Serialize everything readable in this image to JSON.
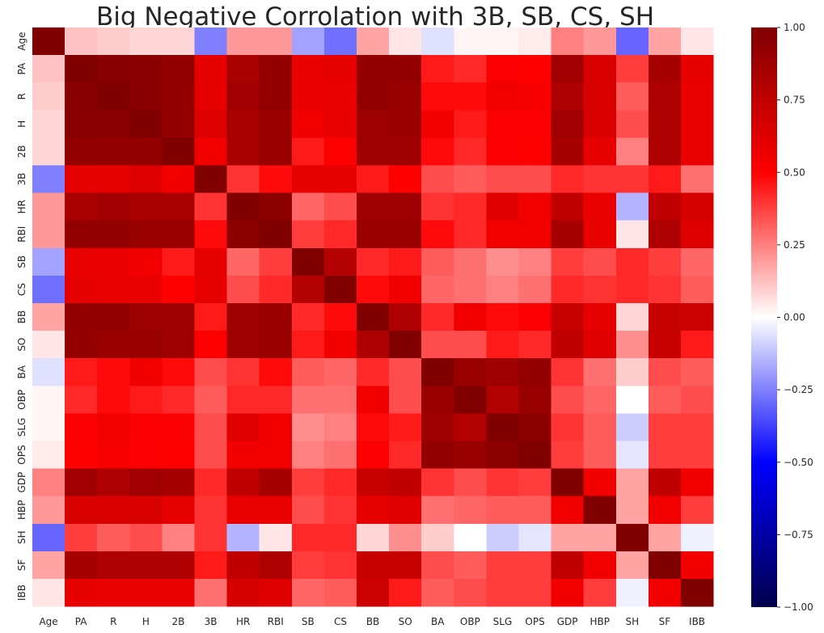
{
  "chart_data": {
    "type": "heatmap",
    "title": "Big Negative Corrolation with 3B, SB, CS, SH",
    "xlabel": "",
    "ylabel": "",
    "x_labels": [
      "Age",
      "PA",
      "R",
      "H",
      "2B",
      "3B",
      "HR",
      "RBI",
      "SB",
      "CS",
      "BB",
      "SO",
      "BA",
      "OBP",
      "SLG",
      "OPS",
      "GDP",
      "HBP",
      "SH",
      "SF",
      "IBB"
    ],
    "y_labels": [
      "Age",
      "PA",
      "R",
      "H",
      "2B",
      "3B",
      "HR",
      "RBI",
      "SB",
      "CS",
      "BB",
      "SO",
      "BA",
      "OBP",
      "SLG",
      "OPS",
      "GDP",
      "HBP",
      "SH",
      "SF",
      "IBB"
    ],
    "values": [
      [
        1.0,
        0.12,
        0.1,
        0.08,
        0.08,
        -0.25,
        0.2,
        0.2,
        -0.18,
        -0.28,
        0.18,
        0.05,
        -0.06,
        0.02,
        0.02,
        0.04,
        0.25,
        0.2,
        -0.3,
        0.18,
        0.05
      ],
      [
        0.12,
        1.0,
        0.97,
        0.96,
        0.93,
        0.6,
        0.84,
        0.92,
        0.58,
        0.6,
        0.92,
        0.92,
        0.45,
        0.42,
        0.52,
        0.5,
        0.87,
        0.65,
        0.38,
        0.85,
        0.6
      ],
      [
        0.1,
        0.97,
        1.0,
        0.96,
        0.92,
        0.6,
        0.87,
        0.92,
        0.57,
        0.58,
        0.93,
        0.9,
        0.48,
        0.48,
        0.55,
        0.53,
        0.82,
        0.65,
        0.32,
        0.82,
        0.58
      ],
      [
        0.08,
        0.96,
        0.96,
        1.0,
        0.92,
        0.63,
        0.84,
        0.9,
        0.55,
        0.58,
        0.89,
        0.9,
        0.55,
        0.45,
        0.52,
        0.52,
        0.87,
        0.65,
        0.35,
        0.82,
        0.58
      ],
      [
        0.08,
        0.93,
        0.92,
        0.92,
        1.0,
        0.55,
        0.84,
        0.9,
        0.45,
        0.5,
        0.88,
        0.88,
        0.48,
        0.42,
        0.52,
        0.5,
        0.85,
        0.6,
        0.25,
        0.82,
        0.58
      ],
      [
        -0.25,
        0.6,
        0.6,
        0.63,
        0.55,
        1.0,
        0.4,
        0.48,
        0.6,
        0.6,
        0.45,
        0.5,
        0.35,
        0.32,
        0.35,
        0.35,
        0.42,
        0.4,
        0.4,
        0.45,
        0.28
      ],
      [
        0.2,
        0.84,
        0.87,
        0.84,
        0.84,
        0.4,
        1.0,
        0.95,
        0.3,
        0.35,
        0.88,
        0.88,
        0.4,
        0.42,
        0.62,
        0.55,
        0.75,
        0.58,
        -0.15,
        0.75,
        0.66
      ],
      [
        0.2,
        0.92,
        0.92,
        0.9,
        0.9,
        0.48,
        0.95,
        1.0,
        0.38,
        0.42,
        0.9,
        0.9,
        0.48,
        0.42,
        0.55,
        0.55,
        0.85,
        0.58,
        0.05,
        0.82,
        0.63
      ],
      [
        -0.18,
        0.58,
        0.57,
        0.55,
        0.45,
        0.6,
        0.3,
        0.38,
        1.0,
        0.8,
        0.42,
        0.45,
        0.32,
        0.28,
        0.22,
        0.25,
        0.38,
        0.35,
        0.42,
        0.38,
        0.3
      ],
      [
        -0.28,
        0.6,
        0.58,
        0.58,
        0.5,
        0.6,
        0.35,
        0.42,
        0.8,
        1.0,
        0.48,
        0.55,
        0.3,
        0.28,
        0.25,
        0.28,
        0.42,
        0.4,
        0.42,
        0.4,
        0.32
      ],
      [
        0.18,
        0.92,
        0.93,
        0.89,
        0.88,
        0.45,
        0.88,
        0.9,
        0.42,
        0.48,
        1.0,
        0.82,
        0.42,
        0.55,
        0.48,
        0.52,
        0.72,
        0.6,
        0.08,
        0.72,
        0.7
      ],
      [
        0.05,
        0.92,
        0.9,
        0.9,
        0.88,
        0.5,
        0.88,
        0.9,
        0.45,
        0.55,
        0.82,
        1.0,
        0.35,
        0.35,
        0.45,
        0.42,
        0.75,
        0.62,
        0.22,
        0.72,
        0.45
      ],
      [
        -0.06,
        0.45,
        0.48,
        0.55,
        0.48,
        0.35,
        0.4,
        0.48,
        0.32,
        0.3,
        0.42,
        0.35,
        1.0,
        0.9,
        0.88,
        0.92,
        0.4,
        0.28,
        0.1,
        0.35,
        0.32
      ],
      [
        0.02,
        0.42,
        0.48,
        0.45,
        0.42,
        0.32,
        0.42,
        0.42,
        0.28,
        0.28,
        0.55,
        0.35,
        0.9,
        1.0,
        0.8,
        0.9,
        0.35,
        0.3,
        0.0,
        0.32,
        0.35
      ],
      [
        0.02,
        0.52,
        0.55,
        0.52,
        0.52,
        0.35,
        0.62,
        0.55,
        0.22,
        0.25,
        0.48,
        0.45,
        0.88,
        0.8,
        1.0,
        0.95,
        0.4,
        0.32,
        -0.1,
        0.38,
        0.38
      ],
      [
        0.04,
        0.5,
        0.53,
        0.52,
        0.5,
        0.35,
        0.55,
        0.55,
        0.25,
        0.28,
        0.52,
        0.42,
        0.92,
        0.9,
        0.95,
        1.0,
        0.38,
        0.32,
        -0.05,
        0.38,
        0.38
      ],
      [
        0.25,
        0.87,
        0.82,
        0.87,
        0.85,
        0.42,
        0.75,
        0.85,
        0.38,
        0.42,
        0.72,
        0.75,
        0.4,
        0.35,
        0.4,
        0.38,
        1.0,
        0.55,
        0.18,
        0.75,
        0.55
      ],
      [
        0.2,
        0.65,
        0.65,
        0.65,
        0.6,
        0.4,
        0.58,
        0.58,
        0.35,
        0.4,
        0.6,
        0.62,
        0.28,
        0.3,
        0.32,
        0.32,
        0.55,
        1.0,
        0.18,
        0.55,
        0.38
      ],
      [
        -0.3,
        0.38,
        0.32,
        0.35,
        0.25,
        0.4,
        -0.15,
        0.05,
        0.42,
        0.42,
        0.08,
        0.22,
        0.1,
        0.0,
        -0.1,
        -0.05,
        0.18,
        0.18,
        1.0,
        0.18,
        -0.03
      ],
      [
        0.18,
        0.85,
        0.82,
        0.82,
        0.82,
        0.45,
        0.75,
        0.82,
        0.38,
        0.4,
        0.72,
        0.72,
        0.35,
        0.32,
        0.38,
        0.38,
        0.75,
        0.55,
        0.18,
        1.0,
        0.55
      ],
      [
        0.05,
        0.6,
        0.58,
        0.58,
        0.58,
        0.28,
        0.66,
        0.63,
        0.3,
        0.32,
        0.7,
        0.45,
        0.32,
        0.35,
        0.38,
        0.38,
        0.55,
        0.38,
        -0.03,
        0.55,
        1.0
      ]
    ],
    "vmin": -1.0,
    "vmax": 1.0,
    "colormap": "seismic",
    "colorbar_ticks": [
      "1.00",
      "0.75",
      "0.50",
      "0.25",
      "0.00",
      "−0.25",
      "−0.50",
      "−0.75",
      "−1.00"
    ],
    "colorbar_tick_values": [
      1.0,
      0.75,
      0.5,
      0.25,
      0.0,
      -0.25,
      -0.5,
      -0.75,
      -1.0
    ],
    "legend": "colorbar right"
  }
}
